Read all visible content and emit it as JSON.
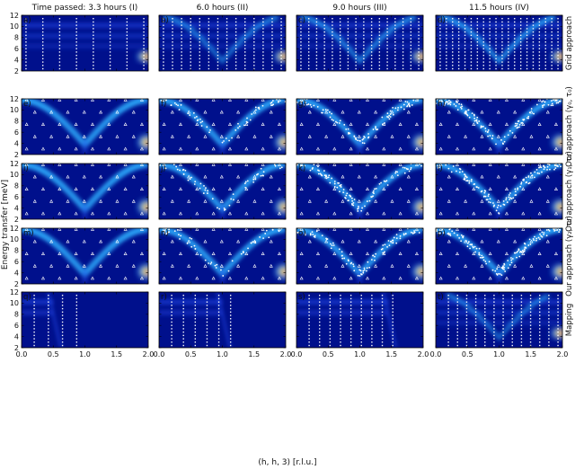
{
  "chart_data": {
    "type": "heatmap",
    "description_axes": {
      "ylabel": "Energy transfer [meV]",
      "xlabel": "(h, h, 3) [r.l.u.]",
      "xlim": [
        0.0,
        2.0
      ],
      "ylim": [
        2,
        12
      ],
      "xticks": [
        "0.0",
        "0.5",
        "1.0",
        "1.5",
        "2.0"
      ],
      "yticks": [
        "2",
        "4",
        "6",
        "8",
        "10",
        "12"
      ]
    },
    "columns": [
      {
        "title": "Time passed: 3.3 hours (I)"
      },
      {
        "title": "6.0 hours (II)"
      },
      {
        "title": "9.0 hours (III)"
      },
      {
        "title": "11.5 hours (IV)"
      }
    ],
    "rows": [
      {
        "label": "Grid approach",
        "panels": [
          "a)",
          "b)",
          "c)",
          "d)"
        ],
        "grid_columns": [
          8,
          14,
          16,
          20
        ]
      },
      {
        "label": "Our approach (γ₀, τ₀)",
        "panels": [
          "e)",
          "f)",
          "g)",
          "h)"
        ],
        "samples": [
          20,
          55,
          95,
          130
        ]
      },
      {
        "label": "Our approach (γ₁, τ₁)",
        "panels": [
          "i)",
          "j)",
          "k)",
          "l)"
        ],
        "samples": [
          20,
          55,
          95,
          130
        ]
      },
      {
        "label": "Our approach (γ₂, τ₂)",
        "panels": [
          "m)",
          "n)",
          "o)",
          "p)"
        ],
        "samples": [
          20,
          55,
          95,
          130
        ]
      },
      {
        "label": "Mapping",
        "panels": [
          "q)",
          "r)",
          "s)",
          "t)"
        ],
        "grid_columns": [
          4,
          6,
          9,
          13
        ]
      }
    ],
    "colors": {
      "background": "#00108c",
      "mid": "#1e46e6",
      "high": "#2eaeff",
      "peak": "#ffe400",
      "hot": "#e81a00",
      "markers": "#ffffff"
    }
  }
}
